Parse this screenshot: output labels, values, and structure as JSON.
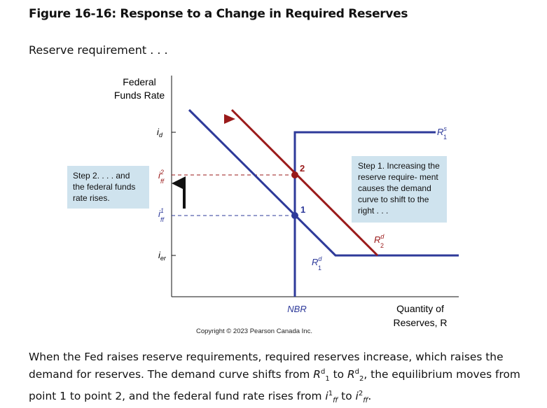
{
  "figure": {
    "title": "Figure 16-16: Response to a Change in Required Reserves",
    "subhead": "Reserve requirement . . ."
  },
  "colors": {
    "supply": "#2e3a9a",
    "demand2": "#9a1a1a",
    "callout": "#cfe3ee"
  },
  "diagram": {
    "y_axis_label": [
      "Federal",
      "Funds Rate"
    ],
    "x_axis_label": [
      "Quantity of",
      "Reserves, R"
    ],
    "y_ticks": {
      "i_d": {
        "base": "i",
        "sub": "d"
      },
      "i_ff2": {
        "base": "i",
        "sub": "ff",
        "sup": "2"
      },
      "i_ff1": {
        "base": "i",
        "sub": "ff",
        "sup": "1"
      },
      "i_er": {
        "base": "i",
        "sub": "er"
      }
    },
    "x_tick": "NBR",
    "curves": {
      "rs1": {
        "base": "R",
        "sup": "s",
        "sub": "1"
      },
      "rd1": {
        "base": "R",
        "sup": "d",
        "sub": "1"
      },
      "rd2": {
        "base": "R",
        "sup": "d",
        "sub": "2"
      }
    },
    "points": [
      "1",
      "2"
    ],
    "copyright": "Copyright © 2023 Pearson Canada Inc.",
    "callouts": {
      "left": "Step 2. . . . and the federal funds rate rises.",
      "right": "Step 1. Increasing the reserve require- ment causes the demand curve to shift to the right . . ."
    }
  },
  "caption": {
    "p1": "When the Fed raises reserve requirements, required reserves increase, which raises the demand for reserves. The demand curve shifts from ",
    "rd": "R",
    "sup_d": "d",
    "sub_1": "1",
    "to": " to ",
    "sub_2": "2",
    "p2": ", the equilibrium moves from point 1 to point 2, and the federal fund rate rises from ",
    "i": "i",
    "sup_1": "1",
    "sup_2": "2",
    "ff": "ff",
    "end": "."
  }
}
